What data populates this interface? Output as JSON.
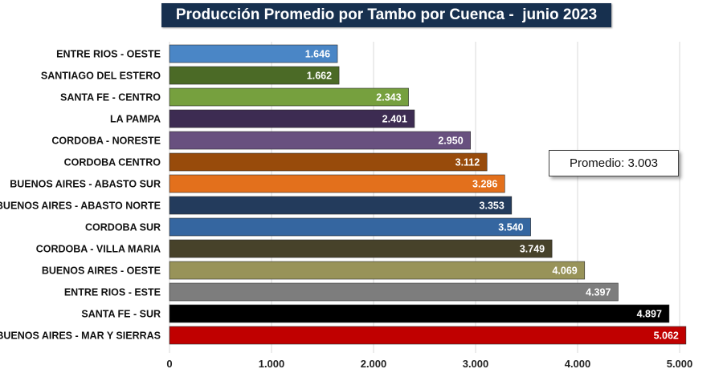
{
  "chart_data": {
    "type": "bar",
    "orientation": "horizontal",
    "title": "Producción Promedio por Tambo por Cuenca -  junio 2023",
    "categories": [
      "ENTRE RIOS - OESTE",
      "SANTIAGO DEL ESTERO",
      "SANTA FE - CENTRO",
      "LA PAMPA",
      "CORDOBA - NORESTE",
      "CORDOBA CENTRO",
      "BUENOS AIRES - ABASTO SUR",
      "BUENOS AIRES - ABASTO NORTE",
      "CORDOBA SUR",
      "CORDOBA - VILLA MARIA",
      "BUENOS AIRES - OESTE",
      "ENTRE RIOS - ESTE",
      "SANTA FE - SUR",
      "BUENOS AIRES - MAR Y SIERRAS"
    ],
    "values": [
      1646,
      1662,
      2343,
      2401,
      2950,
      3112,
      3286,
      3353,
      3540,
      3749,
      4069,
      4397,
      4897,
      5062
    ],
    "value_labels": [
      "1.646",
      "1.662",
      "2.343",
      "2.401",
      "2.950",
      "3.112",
      "3.286",
      "3.353",
      "3.540",
      "3.749",
      "4.069",
      "4.397",
      "4.897",
      "5.062"
    ],
    "colors": [
      "#4a86c6",
      "#4b6a26",
      "#76a03e",
      "#3d2c52",
      "#68507f",
      "#984b0b",
      "#e3701c",
      "#233b5c",
      "#3566a0",
      "#47422a",
      "#989359",
      "#7d7d7d",
      "#000000",
      "#c00000"
    ],
    "xlim": [
      0,
      5000
    ],
    "xticks": [
      0,
      1000,
      2000,
      3000,
      4000,
      5000
    ],
    "xtick_labels": [
      "0",
      "1.000",
      "2.000",
      "3.000",
      "4.000",
      "5.000"
    ],
    "grid": "vertical",
    "annotation": {
      "text": "Promedio: 3.003",
      "value": 3003
    }
  }
}
